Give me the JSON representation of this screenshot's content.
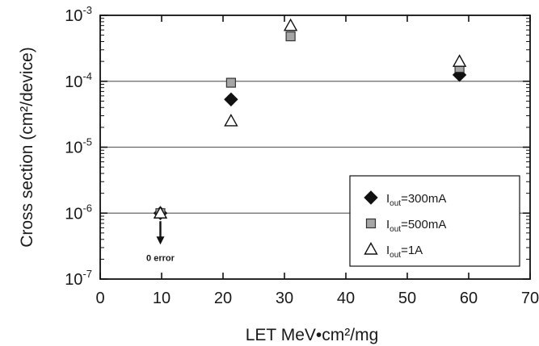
{
  "chart_data": {
    "type": "scatter",
    "title": "",
    "xlabel": "LET MeV•cm²/mg",
    "ylabel": "Cross section (cm²/device)",
    "x_axis": {
      "range": [
        0,
        70
      ],
      "ticks": [
        0,
        10,
        20,
        30,
        40,
        50,
        60,
        70
      ],
      "scale": "linear"
    },
    "y_axis": {
      "range": [
        1e-07,
        0.001
      ],
      "scale": "log",
      "tick_exponents": [
        -7,
        -6,
        -5,
        -4,
        -3
      ],
      "tick_base": "10"
    },
    "grid": "horizontal major lines at decades",
    "legend_position": "bottom-right",
    "series": [
      {
        "name": "I_out=300mA",
        "legend_main": "I",
        "legend_sub": "out",
        "legend_rest": "=300mA",
        "marker": "filled-diamond",
        "color": "#111111",
        "points": [
          {
            "x": 9.8,
            "y": 1e-06
          },
          {
            "x": 21.3,
            "y": 5.3e-05
          },
          {
            "x": 58.5,
            "y": 0.000125
          }
        ]
      },
      {
        "name": "I_out=500mA",
        "legend_main": "I",
        "legend_sub": "out",
        "legend_rest": "=500mA",
        "marker": "gray-square",
        "color": "#9a9a9a",
        "points": [
          {
            "x": 9.8,
            "y": 1e-06
          },
          {
            "x": 21.3,
            "y": 9.5e-05
          },
          {
            "x": 31.0,
            "y": 0.00048
          },
          {
            "x": 58.5,
            "y": 0.00016
          }
        ]
      },
      {
        "name": "I_out=1A",
        "legend_main": "I",
        "legend_sub": "out",
        "legend_rest": "=1A",
        "marker": "open-triangle",
        "color": "#111111",
        "points": [
          {
            "x": 9.8,
            "y": 1e-06
          },
          {
            "x": 21.3,
            "y": 2.5e-05
          },
          {
            "x": 31.0,
            "y": 0.0007
          },
          {
            "x": 58.5,
            "y": 0.0002
          }
        ]
      }
    ],
    "annotations": [
      {
        "text": "0 error",
        "x": 9.8,
        "arrow": "down"
      }
    ]
  }
}
